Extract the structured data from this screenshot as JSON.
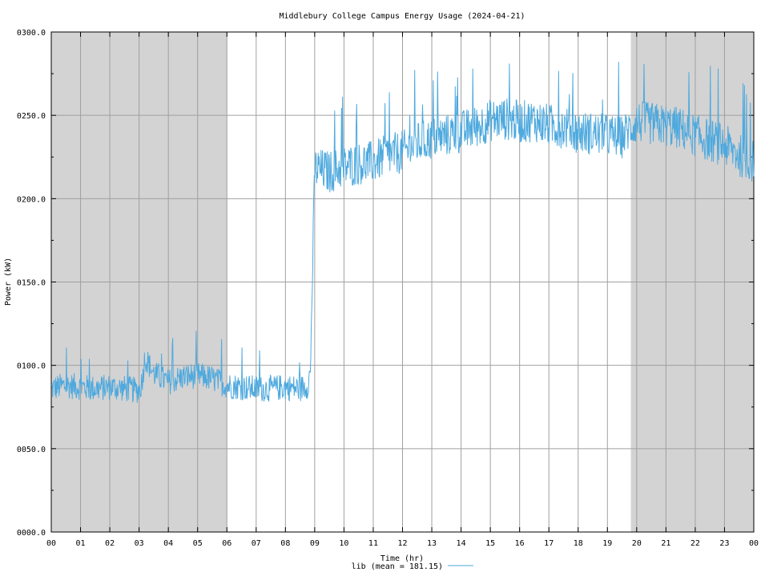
{
  "chart_data": {
    "type": "line",
    "title": "Middlebury College Campus Energy Usage (2024-04-21)",
    "xlabel": "Time (hr)",
    "ylabel": "Power (kW)",
    "xlim": [
      0,
      24
    ],
    "ylim": [
      0,
      300
    ],
    "x_ticks": [
      {
        "value": 0,
        "label": "00"
      },
      {
        "value": 1,
        "label": "01"
      },
      {
        "value": 2,
        "label": "02"
      },
      {
        "value": 3,
        "label": "03"
      },
      {
        "value": 4,
        "label": "04"
      },
      {
        "value": 5,
        "label": "05"
      },
      {
        "value": 6,
        "label": "06"
      },
      {
        "value": 7,
        "label": "07"
      },
      {
        "value": 8,
        "label": "08"
      },
      {
        "value": 9,
        "label": "09"
      },
      {
        "value": 10,
        "label": "10"
      },
      {
        "value": 11,
        "label": "11"
      },
      {
        "value": 12,
        "label": "12"
      },
      {
        "value": 13,
        "label": "13"
      },
      {
        "value": 14,
        "label": "14"
      },
      {
        "value": 15,
        "label": "15"
      },
      {
        "value": 16,
        "label": "16"
      },
      {
        "value": 17,
        "label": "17"
      },
      {
        "value": 18,
        "label": "18"
      },
      {
        "value": 19,
        "label": "19"
      },
      {
        "value": 20,
        "label": "20"
      },
      {
        "value": 21,
        "label": "21"
      },
      {
        "value": 22,
        "label": "22"
      },
      {
        "value": 23,
        "label": "23"
      },
      {
        "value": 24,
        "label": "00"
      }
    ],
    "y_ticks": [
      {
        "value": 0,
        "label": "0000.0"
      },
      {
        "value": 50,
        "label": "0050.0"
      },
      {
        "value": 100,
        "label": "0100.0"
      },
      {
        "value": 150,
        "label": "0150.0"
      },
      {
        "value": 200,
        "label": "0200.0"
      },
      {
        "value": 250,
        "label": "0250.0"
      },
      {
        "value": 300,
        "label": "0300.0"
      }
    ],
    "grid": true,
    "shaded_periods": [
      [
        0,
        6
      ],
      [
        19.8,
        24
      ]
    ],
    "shade_color": "#d3d3d3",
    "legend_position": "bottom-center",
    "series": [
      {
        "name": "lib (mean = 181.15)",
        "color": "#4ea9de",
        "x": [
          0,
          0.5,
          1,
          1.5,
          2,
          2.5,
          3,
          3.1,
          3.2,
          3.5,
          4,
          4.5,
          5,
          5.5,
          6,
          6.5,
          7,
          7.5,
          8,
          8.5,
          8.75,
          8.85,
          8.95,
          9,
          9.5,
          10,
          10.5,
          11,
          11.5,
          12,
          12.5,
          13,
          13.5,
          14,
          14.5,
          15,
          15.5,
          16,
          16.5,
          17,
          17.5,
          18,
          18.5,
          19,
          19.5,
          20,
          20.5,
          21,
          21.5,
          22,
          22.5,
          23,
          23.5,
          24
        ],
        "values": [
          86,
          88,
          87,
          86,
          87,
          86,
          85,
          90,
          105,
          95,
          90,
          93,
          94,
          92,
          88,
          87,
          86,
          86,
          87,
          86,
          88,
          95,
          175,
          218,
          216,
          219,
          221,
          222,
          226,
          228,
          233,
          236,
          238,
          240,
          243,
          247,
          248,
          246,
          247,
          244,
          243,
          240,
          239,
          238,
          237,
          246,
          245,
          244,
          242,
          238,
          235,
          232,
          226,
          222
        ]
      }
    ]
  }
}
